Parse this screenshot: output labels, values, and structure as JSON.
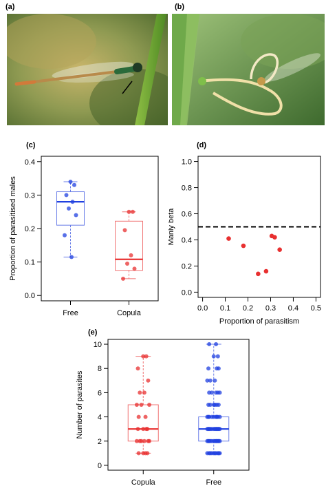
{
  "panels": {
    "a": {
      "label": "(a)"
    },
    "b": {
      "label": "(b)"
    },
    "c": {
      "label": "(c)"
    },
    "d": {
      "label": "(d)"
    },
    "e": {
      "label": "(e)"
    }
  },
  "colors": {
    "blue": "#2040e0",
    "red": "#e83030",
    "blue_box": "#6a7ee8",
    "red_box": "#f07474"
  },
  "chart_data": [
    {
      "id": "c",
      "type": "box",
      "ylabel": "Proportion of parasitised males",
      "categories": [
        "Free",
        "Copula"
      ],
      "ylim": [
        0,
        0.4
      ],
      "yticks": [
        0.0,
        0.1,
        0.2,
        0.3,
        0.4
      ],
      "ytick_labels": [
        "0.0",
        "0.1",
        "0.2",
        "0.3",
        "0.4"
      ],
      "boxes": [
        {
          "name": "Free",
          "color": "#2040e0",
          "q1": 0.21,
          "median": 0.28,
          "q3": 0.31,
          "whisker_low": 0.115,
          "whisker_high": 0.34,
          "points": [
            0.34,
            0.33,
            0.3,
            0.28,
            0.26,
            0.24,
            0.18,
            0.115
          ]
        },
        {
          "name": "Copula",
          "color": "#e83030",
          "q1": 0.075,
          "median": 0.108,
          "q3": 0.222,
          "whisker_low": 0.05,
          "whisker_high": 0.25,
          "points": [
            0.25,
            0.25,
            0.195,
            0.12,
            0.095,
            0.08,
            0.05
          ]
        }
      ]
    },
    {
      "id": "d",
      "type": "scatter",
      "xlabel": "Proportion of parasitism",
      "ylabel": "Manly beta",
      "xlim": [
        0,
        0.5
      ],
      "ylim": [
        0,
        1.0
      ],
      "xticks": [
        0.0,
        0.1,
        0.2,
        0.3,
        0.4,
        0.5
      ],
      "xtick_labels": [
        "0.0",
        "0.1",
        "0.2",
        "0.3",
        "0.4",
        "0.5"
      ],
      "yticks": [
        0.0,
        0.2,
        0.4,
        0.6,
        0.8,
        1.0
      ],
      "ytick_labels": [
        "0.0",
        "0.2",
        "0.4",
        "0.6",
        "0.8",
        "1.0"
      ],
      "reference_line": 0.5,
      "points": [
        {
          "x": 0.115,
          "y": 0.41
        },
        {
          "x": 0.18,
          "y": 0.355
        },
        {
          "x": 0.245,
          "y": 0.14
        },
        {
          "x": 0.28,
          "y": 0.16
        },
        {
          "x": 0.305,
          "y": 0.43
        },
        {
          "x": 0.318,
          "y": 0.42
        },
        {
          "x": 0.34,
          "y": 0.325
        }
      ]
    },
    {
      "id": "e",
      "type": "box",
      "ylabel": "Number of parasites",
      "categories": [
        "Copula",
        "Free"
      ],
      "ylim": [
        0,
        10
      ],
      "yticks": [
        0,
        2,
        4,
        6,
        8,
        10
      ],
      "ytick_labels": [
        "0",
        "2",
        "4",
        "6",
        "8",
        "10"
      ],
      "boxes": [
        {
          "name": "Copula",
          "color": "#e83030",
          "q1": 2,
          "median": 3,
          "q3": 5,
          "whisker_low": 1,
          "whisker_high": 9,
          "points": [
            1,
            1,
            1,
            1,
            2,
            2,
            2,
            2,
            2,
            2,
            3,
            3,
            3,
            3,
            4,
            4,
            5,
            5,
            5,
            6,
            6,
            7,
            8,
            9,
            9
          ]
        },
        {
          "name": "Free",
          "color": "#2040e0",
          "q1": 2,
          "median": 3,
          "q3": 4,
          "whisker_low": 1,
          "whisker_high": 10,
          "points": [
            1,
            1,
            1,
            1,
            1,
            1,
            1,
            1,
            1,
            1,
            2,
            2,
            2,
            2,
            2,
            2,
            2,
            2,
            2,
            2,
            2,
            2,
            3,
            3,
            3,
            3,
            3,
            3,
            3,
            3,
            3,
            3,
            3,
            3,
            4,
            4,
            4,
            4,
            4,
            4,
            4,
            4,
            4,
            5,
            5,
            5,
            5,
            5,
            5,
            6,
            6,
            6,
            6,
            6,
            7,
            7,
            7,
            8,
            8,
            8,
            9,
            9,
            10,
            10
          ]
        }
      ]
    }
  ]
}
